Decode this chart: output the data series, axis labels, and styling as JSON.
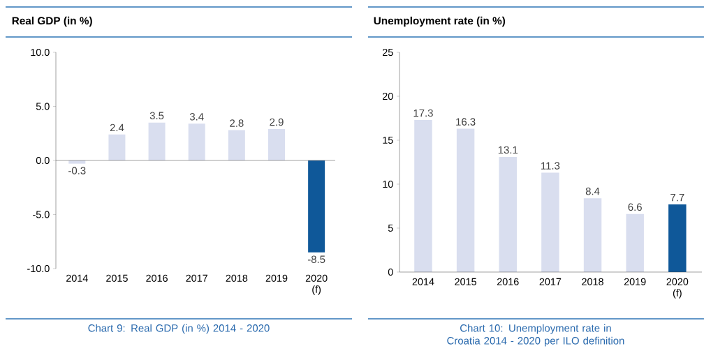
{
  "chart_data": [
    {
      "type": "bar",
      "title": "Real GDP (in %)",
      "categories": [
        "2014",
        "2015",
        "2016",
        "2017",
        "2018",
        "2019",
        "2020 (f)"
      ],
      "values": [
        -0.3,
        2.4,
        3.5,
        3.4,
        2.8,
        2.9,
        -8.5
      ],
      "colors": [
        "#d9deef",
        "#d9deef",
        "#d9deef",
        "#d9deef",
        "#d9deef",
        "#d9deef",
        "#0f5899"
      ],
      "ylim": [
        -10,
        10
      ],
      "yticks": [
        {
          "value": -10,
          "label": "-10.0"
        },
        {
          "value": -5,
          "label": "-5.0"
        },
        {
          "value": 0,
          "label": "0.0"
        },
        {
          "value": 5,
          "label": "5.0"
        },
        {
          "value": 10,
          "label": "10.0"
        }
      ],
      "data_labels": true,
      "annotations": [
        "Chart 9: Real GDP (in %) 2014 - 2020"
      ]
    },
    {
      "type": "bar",
      "title": "Unemployment rate (in %)",
      "categories": [
        "2014",
        "2015",
        "2016",
        "2017",
        "2018",
        "2019",
        "2020 (f)"
      ],
      "values": [
        17.3,
        16.3,
        13.1,
        11.3,
        8.4,
        6.6,
        7.7
      ],
      "colors": [
        "#d9deef",
        "#d9deef",
        "#d9deef",
        "#d9deef",
        "#d9deef",
        "#d9deef",
        "#0f5899"
      ],
      "ylim": [
        0,
        25
      ],
      "yticks": [
        0,
        5,
        10,
        15,
        20,
        25
      ],
      "data_labels": true,
      "annotations": [
        "Chart 10: Unemployment rate in Croatia 2014 - 2020 per ILO definition"
      ]
    }
  ]
}
